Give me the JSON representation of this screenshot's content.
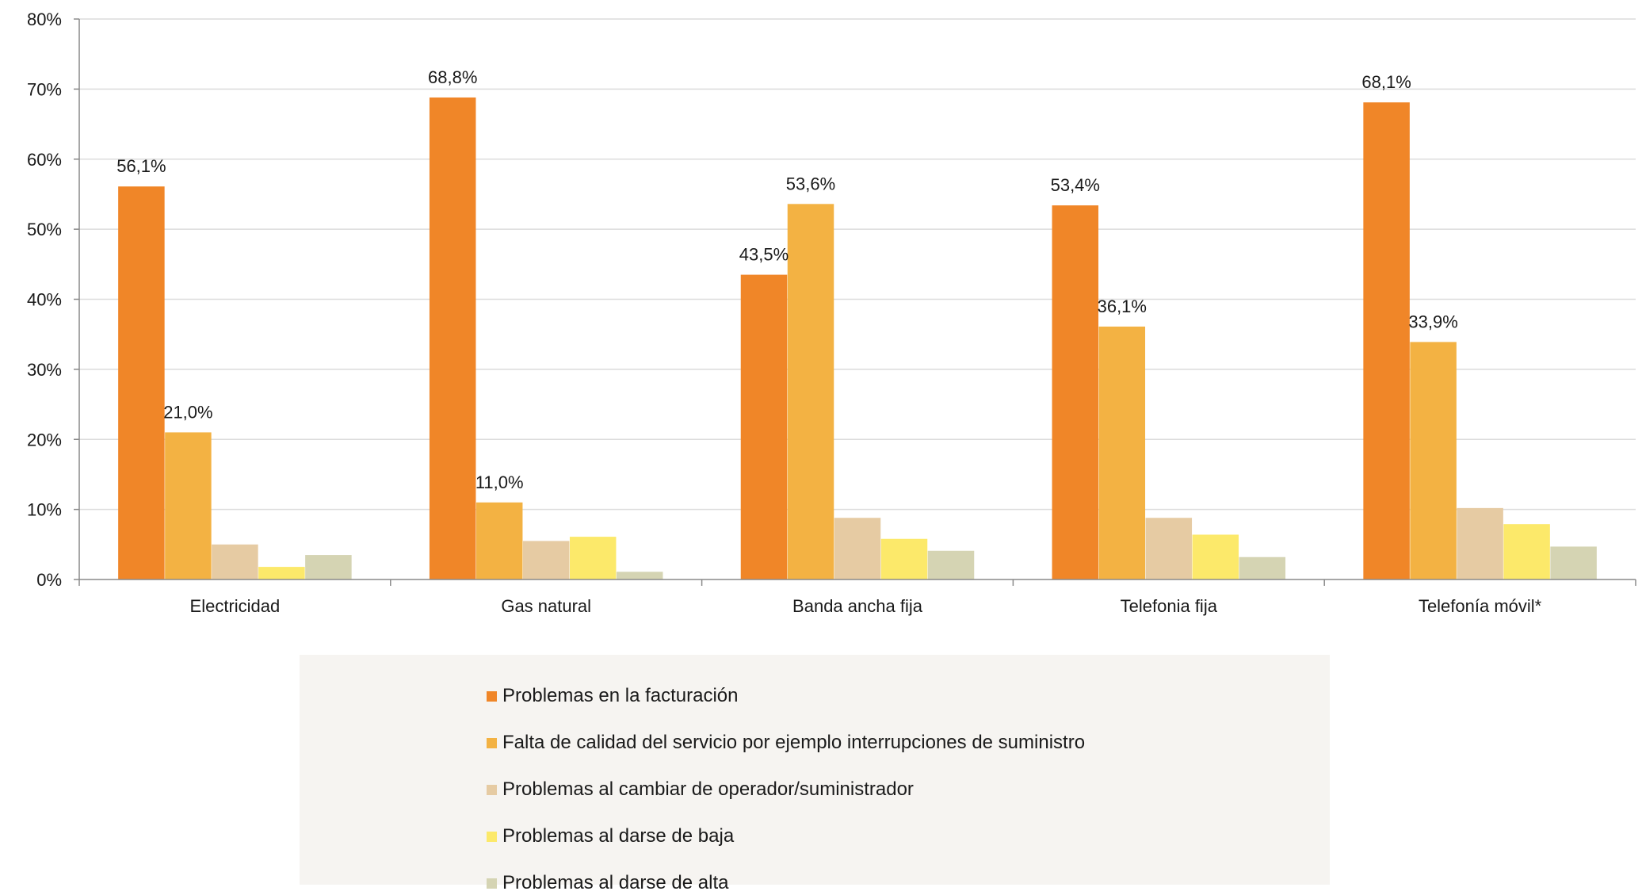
{
  "chart_data": {
    "type": "bar",
    "title": "",
    "xlabel": "",
    "ylabel": "",
    "ylim": [
      0,
      80
    ],
    "yticks": [
      "0%",
      "10%",
      "20%",
      "30%",
      "40%",
      "50%",
      "60%",
      "70%",
      "80%"
    ],
    "grid": true,
    "legend_position": "bottom",
    "categories": [
      "Electricidad",
      "Gas natural",
      "Banda ancha fija",
      "Telefonia fija",
      "Telefonía móvil*"
    ],
    "series": [
      {
        "name": "Problemas en la facturación",
        "color": "#f08628",
        "values": [
          56.1,
          68.8,
          43.5,
          53.4,
          68.1
        ],
        "labels": [
          "56,1%",
          "68,8%",
          "43,5%",
          "53,4%",
          "68,1%"
        ]
      },
      {
        "name": "Falta de calidad del servicio por ejemplo interrupciones de suministro",
        "color": "#f3b243",
        "values": [
          21.0,
          11.0,
          53.6,
          36.1,
          33.9
        ],
        "labels": [
          "21,0%",
          "11,0%",
          "53,6%",
          "36,1%",
          "33,9%"
        ]
      },
      {
        "name": "Problemas al cambiar de operador/suministrador",
        "color": "#e6cba3",
        "values": [
          5.0,
          5.5,
          8.8,
          8.8,
          10.2
        ],
        "labels": [
          "",
          "",
          "",
          "",
          ""
        ]
      },
      {
        "name": "Problemas al darse de baja",
        "color": "#fce96a",
        "values": [
          1.8,
          6.1,
          5.8,
          6.4,
          7.9
        ],
        "labels": [
          "",
          "",
          "",
          "",
          ""
        ]
      },
      {
        "name": "Problemas al darse de alta",
        "color": "#d5d4b3",
        "values": [
          3.5,
          1.1,
          4.1,
          3.2,
          4.7
        ],
        "labels": [
          "",
          "",
          "",
          "",
          ""
        ]
      }
    ]
  }
}
